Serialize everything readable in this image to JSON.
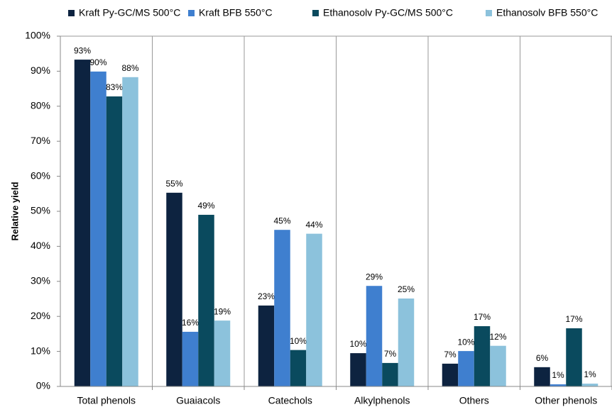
{
  "chart_data": {
    "type": "bar",
    "y_label": "Relative yield",
    "categories": [
      "Total phenols",
      "Guaiacols",
      "Catechols",
      "Alkylphenols",
      "Others",
      "Other phenols"
    ],
    "series": [
      {
        "name": "Kraft Py-GC/MS 500°C",
        "color": "#0d2340",
        "values": [
          93.3,
          55.3,
          23.1,
          9.5,
          6.5,
          5.5
        ],
        "value_labels": [
          "93%",
          "55%",
          "23%",
          "10%",
          "7%",
          "6%"
        ]
      },
      {
        "name": "Kraft BFB 550°C",
        "color": "#3f7fcf",
        "values": [
          89.9,
          15.6,
          44.7,
          28.7,
          10.1,
          0.6
        ],
        "value_labels": [
          "90%",
          "16%",
          "45%",
          "29%",
          "10%",
          "1%"
        ]
      },
      {
        "name": "Ethanosolv Py-GC/MS 500°C",
        "color": "#0a4a5e",
        "values": [
          82.8,
          49.0,
          10.4,
          6.7,
          17.2,
          16.6
        ],
        "value_labels": [
          "83%",
          "49%",
          "10%",
          "7%",
          "17%",
          "17%"
        ]
      },
      {
        "name": "Ethanosolv BFB 550°C",
        "color": "#8cc2dc",
        "values": [
          88.3,
          18.8,
          43.6,
          25.1,
          11.6,
          0.8
        ],
        "value_labels": [
          "88%",
          "19%",
          "44%",
          "25%",
          "12%",
          "1%"
        ]
      }
    ],
    "ylim": [
      0,
      100
    ],
    "yticks": [
      {
        "value": 0,
        "label": "0%"
      },
      {
        "value": 10,
        "label": "10%"
      },
      {
        "value": 20,
        "label": "20%"
      },
      {
        "value": 30,
        "label": "30%"
      },
      {
        "value": 40,
        "label": "40%"
      },
      {
        "value": 50,
        "label": "50%"
      },
      {
        "value": 60,
        "label": "60%"
      },
      {
        "value": 70,
        "label": "70%"
      },
      {
        "value": 80,
        "label": "80%"
      },
      {
        "value": 90,
        "label": "90%"
      },
      {
        "value": 100,
        "label": "100%"
      }
    ],
    "grid": true
  }
}
